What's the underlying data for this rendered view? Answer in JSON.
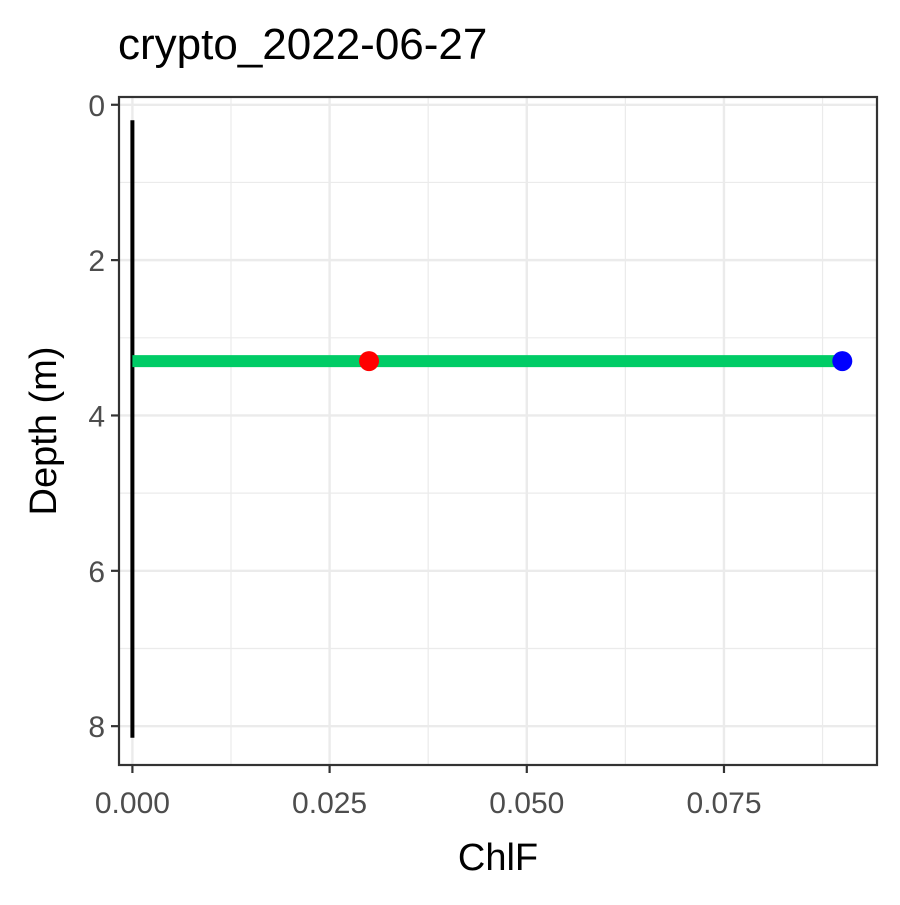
{
  "chart_data": {
    "type": "line",
    "title": "crypto_2022-06-27",
    "xlabel": "ChlF",
    "ylabel": "Depth (m)",
    "xlim": [
      -0.0017,
      0.0944
    ],
    "ylim": [
      8.5,
      -0.1
    ],
    "y_reversed": true,
    "grid": true,
    "legend": "none",
    "x_ticks": [
      0.0,
      0.025,
      0.05,
      0.075
    ],
    "x_tick_labels": [
      "0.000",
      "0.025",
      "0.050",
      "0.075"
    ],
    "y_ticks": [
      0,
      2,
      4,
      6,
      8
    ],
    "y_tick_labels": [
      "0",
      "2",
      "4",
      "6",
      "8"
    ],
    "series": [
      {
        "color": "#000000",
        "kind": "line",
        "x": [
          0.0,
          0.0,
          0.0,
          0.0
        ],
        "y": [
          0.2,
          3.2,
          3.3,
          8.15
        ]
      },
      {
        "color": "#00CC66",
        "kind": "line",
        "x": [
          0.0,
          0.09
        ],
        "y": [
          3.3,
          3.3
        ]
      },
      {
        "color": "#FF0000",
        "kind": "point",
        "x": [
          0.03
        ],
        "y": [
          3.3
        ]
      },
      {
        "color": "#0000FF",
        "kind": "point",
        "x": [
          0.09
        ],
        "y": [
          3.3
        ]
      }
    ]
  }
}
